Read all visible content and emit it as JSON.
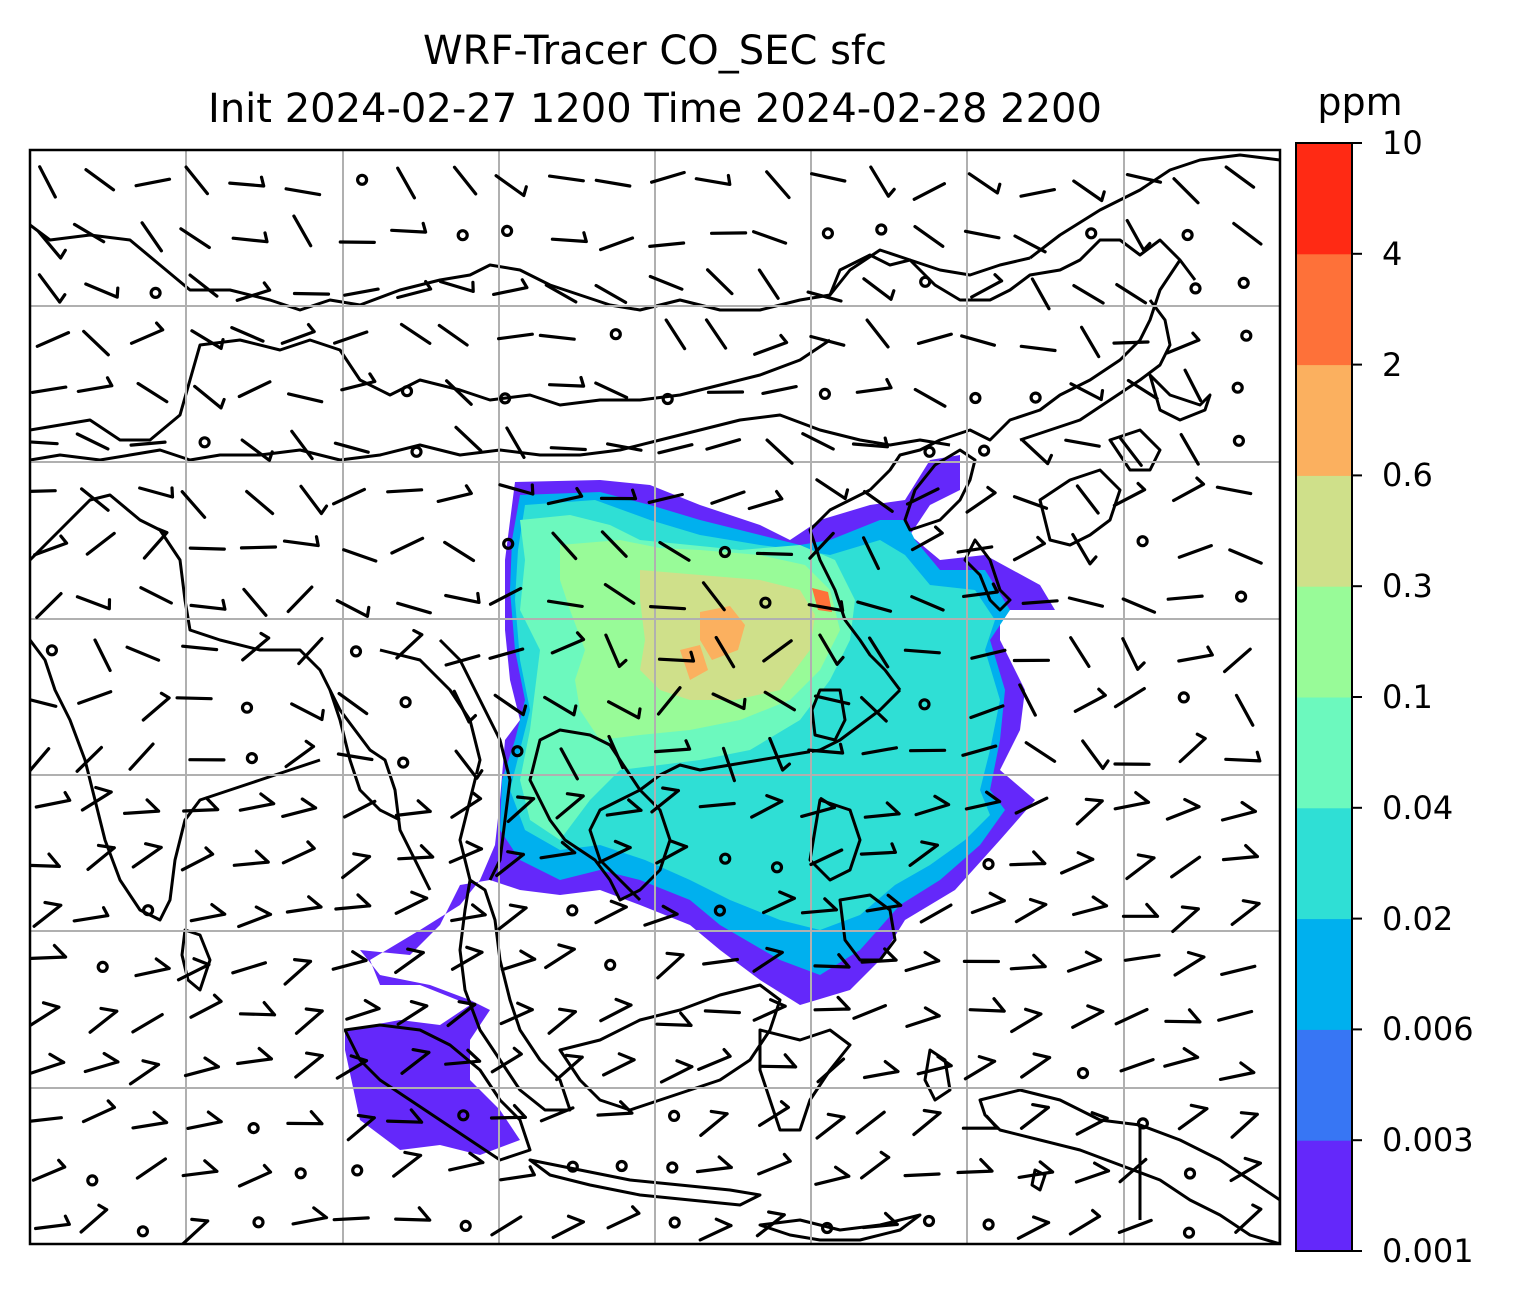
{
  "title": {
    "line1": "WRF-Tracer CO_SEC sfc",
    "line2": "Init 2024-02-27 1200 Time 2024-02-28 2200"
  },
  "colorbar": {
    "unit": "ppm",
    "levels": [
      "0.001",
      "0.003",
      "0.006",
      "0.02",
      "0.04",
      "0.1",
      "0.3",
      "0.6",
      "2",
      "4",
      "10"
    ],
    "colors": [
      "#6428fa",
      "#3776f4",
      "#00b0ee",
      "#2fdfd5",
      "#6cf9be",
      "#98fb98",
      "#cfe08a",
      "#fbb05f",
      "#fe7139",
      "#ff2a14"
    ]
  },
  "map": {
    "region": "East / Southeast Asia",
    "gridlines": true,
    "features": [
      "coastlines",
      "country borders",
      "wind barbs",
      "CO_SEC concentration shading"
    ]
  }
}
